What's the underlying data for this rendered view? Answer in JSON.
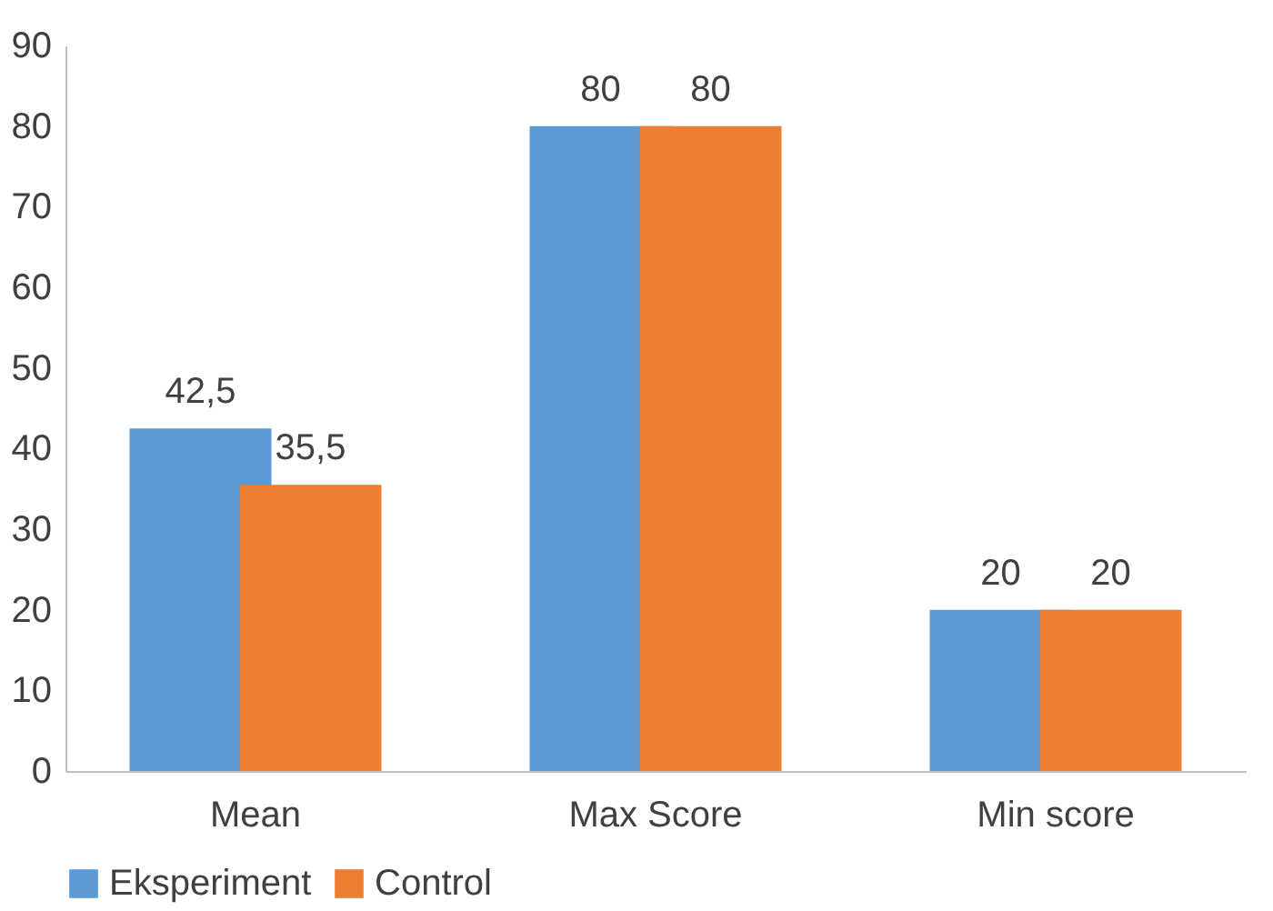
{
  "chart_data": {
    "type": "bar",
    "categories": [
      "Mean",
      "Max Score",
      "Min score"
    ],
    "series": [
      {
        "name": "Eksperiment",
        "color": "#5b9bd5",
        "values": [
          42.5,
          80,
          20
        ],
        "value_labels": [
          "42,5",
          "80",
          "20"
        ]
      },
      {
        "name": "Control",
        "color": "#ed7d31",
        "values": [
          35.5,
          80,
          20
        ],
        "value_labels": [
          "35,5",
          "80",
          "20"
        ]
      }
    ],
    "ylim": [
      0,
      90
    ],
    "yticks": [
      0,
      10,
      20,
      30,
      40,
      50,
      60,
      70,
      80,
      90
    ],
    "grid": false,
    "legend": "bottom"
  }
}
